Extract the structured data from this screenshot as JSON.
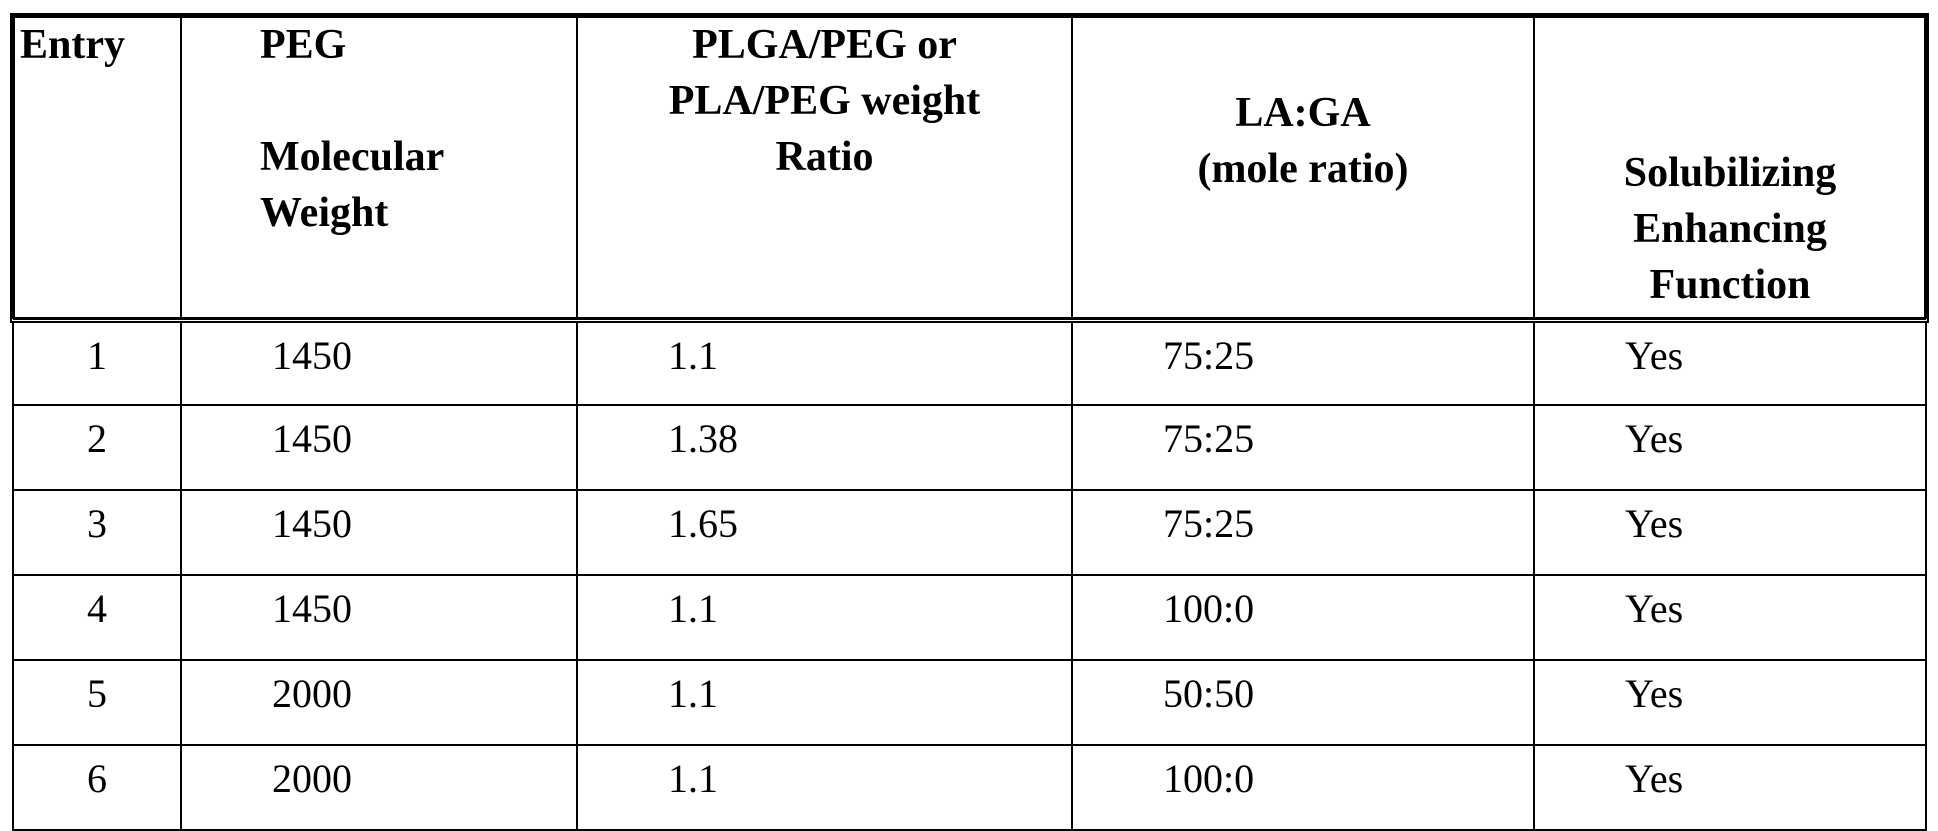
{
  "table": {
    "headers": [
      [
        "Entry"
      ],
      [
        "PEG",
        "Molecular",
        "Weight"
      ],
      [
        "PLGA/PEG or",
        "PLA/PEG weight",
        "Ratio"
      ],
      [
        "LA:GA",
        "(mole ratio)"
      ],
      [
        "Solubilizing",
        "Enhancing",
        "Function"
      ]
    ],
    "rows": [
      [
        "1",
        "1450",
        "1.1",
        "75:25",
        "Yes"
      ],
      [
        "2",
        "1450",
        "1.38",
        "75:25",
        "Yes"
      ],
      [
        "3",
        "1450",
        "1.65",
        "75:25",
        "Yes"
      ],
      [
        "4",
        "1450",
        "1.1",
        "100:0",
        "Yes"
      ],
      [
        "5",
        "2000",
        "1.1",
        "50:50",
        "Yes"
      ],
      [
        "6",
        "2000",
        "1.1",
        "100:0",
        "Yes"
      ]
    ]
  }
}
